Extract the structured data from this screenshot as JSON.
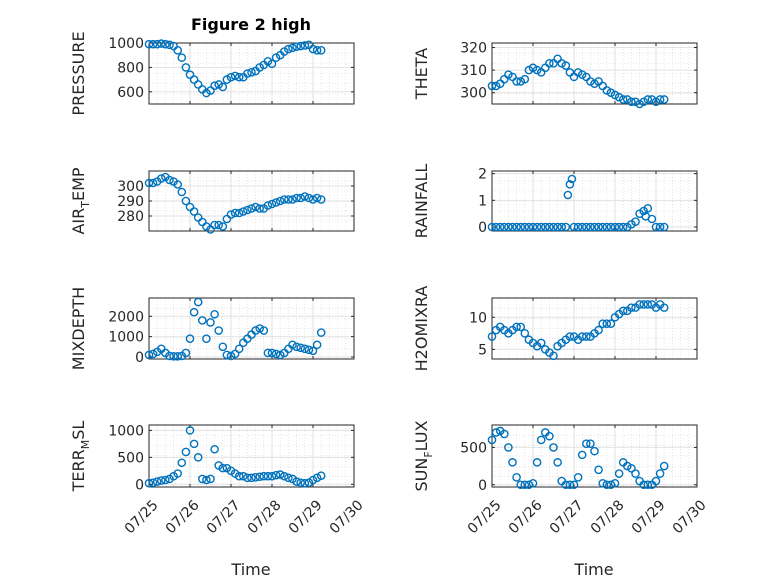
{
  "figure": {
    "title": "Figure 2 high",
    "xlabel": "Time"
  },
  "x_ticks": [
    "07/25",
    "07/26",
    "07/27",
    "07/28",
    "07/29",
    "07/30"
  ],
  "chart_data": [
    {
      "type": "scatter",
      "ylabel": "PRESSURE",
      "ylim": [
        500,
        1000
      ],
      "yticks": [
        "1000",
        "800",
        "600"
      ],
      "ytick_values": [
        1000,
        800,
        600
      ],
      "xlim": [
        "07/25",
        "07/30"
      ],
      "grid": true,
      "minor_grid": true,
      "color": "#0072BD",
      "x": [
        0.0,
        0.1,
        0.2,
        0.3,
        0.4,
        0.5,
        0.6,
        0.7,
        0.8,
        0.9,
        1.0,
        1.1,
        1.2,
        1.3,
        1.4,
        1.5,
        1.6,
        1.7,
        1.8,
        1.9,
        2.0,
        2.1,
        2.2,
        2.3,
        2.4,
        2.5,
        2.6,
        2.7,
        2.8,
        2.9,
        3.0,
        3.1,
        3.2,
        3.3,
        3.4,
        3.5,
        3.6,
        3.7,
        3.8,
        3.9,
        4.0,
        4.1,
        4.2
      ],
      "y": [
        990,
        990,
        990,
        995,
        990,
        985,
        975,
        940,
        880,
        800,
        740,
        700,
        660,
        620,
        590,
        610,
        650,
        660,
        640,
        700,
        720,
        730,
        720,
        720,
        750,
        760,
        770,
        800,
        820,
        850,
        830,
        880,
        900,
        930,
        950,
        960,
        970,
        975,
        980,
        985,
        950,
        940,
        940
      ]
    },
    {
      "type": "scatter",
      "ylabel": "THETA",
      "ylim": [
        295,
        322
      ],
      "yticks": [
        "320",
        "310",
        "300"
      ],
      "ytick_values": [
        320,
        310,
        300
      ],
      "xlim": [
        "07/25",
        "07/30"
      ],
      "grid": true,
      "minor_grid": true,
      "color": "#0072BD",
      "x": [
        0.0,
        0.1,
        0.2,
        0.3,
        0.4,
        0.5,
        0.6,
        0.7,
        0.8,
        0.9,
        1.0,
        1.1,
        1.2,
        1.3,
        1.4,
        1.5,
        1.6,
        1.7,
        1.8,
        1.9,
        2.0,
        2.1,
        2.2,
        2.3,
        2.4,
        2.5,
        2.6,
        2.7,
        2.8,
        2.9,
        3.0,
        3.1,
        3.2,
        3.3,
        3.4,
        3.5,
        3.6,
        3.7,
        3.8,
        3.9,
        4.0,
        4.1,
        4.2
      ],
      "y": [
        303,
        303,
        304,
        306,
        308,
        307,
        305,
        305,
        306,
        310,
        311,
        310,
        309,
        311,
        313,
        313,
        315,
        313,
        312,
        309,
        307,
        309,
        308,
        307,
        305,
        304,
        305,
        303,
        301,
        300,
        299,
        298,
        297,
        297,
        296,
        296,
        295,
        296,
        297,
        297,
        296,
        297,
        297
      ]
    },
    {
      "type": "scatter",
      "ylabel": "AIR_TEMP",
      "ylabel_parts": {
        "main": "AIR",
        "sub": "T",
        "rest": "EMP"
      },
      "ylim": [
        270,
        310
      ],
      "yticks": [
        "300",
        "290",
        "280"
      ],
      "ytick_values": [
        300,
        290,
        280
      ],
      "xlim": [
        "07/25",
        "07/30"
      ],
      "grid": true,
      "minor_grid": true,
      "color": "#0072BD",
      "x": [
        0.0,
        0.1,
        0.2,
        0.3,
        0.4,
        0.5,
        0.6,
        0.7,
        0.8,
        0.9,
        1.0,
        1.1,
        1.2,
        1.3,
        1.4,
        1.5,
        1.6,
        1.7,
        1.8,
        1.9,
        2.0,
        2.1,
        2.2,
        2.3,
        2.4,
        2.5,
        2.6,
        2.7,
        2.8,
        2.9,
        3.0,
        3.1,
        3.2,
        3.3,
        3.4,
        3.5,
        3.6,
        3.7,
        3.8,
        3.9,
        4.0,
        4.1,
        4.2
      ],
      "y": [
        302,
        302,
        303,
        305,
        306,
        304,
        303,
        301,
        296,
        290,
        286,
        283,
        279,
        276,
        273,
        271,
        274,
        274,
        273,
        278,
        281,
        282,
        282,
        283,
        284,
        285,
        286,
        285,
        285,
        287,
        288,
        289,
        290,
        291,
        291,
        291,
        292,
        292,
        293,
        292,
        291,
        292,
        291
      ]
    },
    {
      "type": "scatter",
      "ylabel": "RAINFALL",
      "ylim": [
        -0.15,
        2.1
      ],
      "yticks": [
        "2",
        "1",
        "0"
      ],
      "ytick_values": [
        2,
        1,
        0
      ],
      "xlim": [
        "07/25",
        "07/30"
      ],
      "grid": true,
      "minor_grid": true,
      "color": "#0072BD",
      "x": [
        0.0,
        0.1,
        0.2,
        0.3,
        0.4,
        0.5,
        0.6,
        0.7,
        0.8,
        0.9,
        1.0,
        1.1,
        1.2,
        1.3,
        1.4,
        1.5,
        1.6,
        1.7,
        1.8,
        1.85,
        1.9,
        1.95,
        2.0,
        2.1,
        2.2,
        2.3,
        2.4,
        2.5,
        2.6,
        2.7,
        2.8,
        2.9,
        3.0,
        3.1,
        3.2,
        3.3,
        3.4,
        3.5,
        3.6,
        3.7,
        3.75,
        3.8,
        3.9,
        4.0,
        4.1,
        4.2
      ],
      "y": [
        0,
        0,
        0,
        0,
        0,
        0,
        0,
        0,
        0,
        0,
        0,
        0,
        0,
        0,
        0,
        0,
        0,
        0,
        0,
        1.2,
        1.6,
        1.8,
        0,
        0,
        0,
        0,
        0,
        0,
        0,
        0,
        0,
        0,
        0,
        0,
        0,
        0,
        0.1,
        0.2,
        0.5,
        0.6,
        0.4,
        0.7,
        0.3,
        0,
        0,
        0
      ]
    },
    {
      "type": "scatter",
      "ylabel": "MIXDEPTH",
      "ylim": [
        -100,
        2900
      ],
      "yticks": [
        "2000",
        "1000",
        "0"
      ],
      "ytick_values": [
        2000,
        1000,
        0
      ],
      "xlim": [
        "07/25",
        "07/30"
      ],
      "grid": true,
      "minor_grid": true,
      "color": "#0072BD",
      "x": [
        0.0,
        0.1,
        0.2,
        0.3,
        0.4,
        0.5,
        0.6,
        0.7,
        0.8,
        0.9,
        1.0,
        1.1,
        1.2,
        1.3,
        1.4,
        1.5,
        1.6,
        1.7,
        1.8,
        1.9,
        2.0,
        2.1,
        2.2,
        2.3,
        2.4,
        2.5,
        2.6,
        2.7,
        2.8,
        2.9,
        3.0,
        3.1,
        3.2,
        3.3,
        3.4,
        3.5,
        3.6,
        3.7,
        3.8,
        3.9,
        4.0,
        4.1,
        4.2
      ],
      "y": [
        100,
        150,
        250,
        400,
        200,
        50,
        30,
        30,
        50,
        200,
        900,
        2200,
        2700,
        1800,
        900,
        1700,
        2100,
        1300,
        500,
        100,
        50,
        150,
        400,
        700,
        900,
        1100,
        1300,
        1400,
        1300,
        200,
        200,
        150,
        100,
        200,
        400,
        600,
        500,
        450,
        400,
        350,
        300,
        600,
        1200
      ]
    },
    {
      "type": "scatter",
      "ylabel": "H2OMIXRA",
      "ylim": [
        3.5,
        13
      ],
      "yticks": [
        "10",
        "5"
      ],
      "ytick_values": [
        10,
        5
      ],
      "xlim": [
        "07/25",
        "07/30"
      ],
      "grid": true,
      "minor_grid": true,
      "color": "#0072BD",
      "x": [
        0.0,
        0.1,
        0.2,
        0.3,
        0.4,
        0.5,
        0.6,
        0.7,
        0.8,
        0.9,
        1.0,
        1.1,
        1.2,
        1.3,
        1.4,
        1.5,
        1.6,
        1.7,
        1.8,
        1.9,
        2.0,
        2.1,
        2.2,
        2.3,
        2.4,
        2.5,
        2.6,
        2.7,
        2.8,
        2.9,
        3.0,
        3.1,
        3.2,
        3.3,
        3.4,
        3.5,
        3.6,
        3.7,
        3.8,
        3.9,
        4.0,
        4.1,
        4.2
      ],
      "y": [
        7,
        8,
        8.5,
        8,
        7.5,
        8,
        8.5,
        8.5,
        7.5,
        6.5,
        6,
        5.5,
        6,
        5,
        4.5,
        4,
        5.5,
        6,
        6.5,
        7,
        7,
        6.5,
        7,
        7,
        7,
        7.5,
        8,
        9,
        9,
        9,
        10,
        10.5,
        11,
        11,
        11.5,
        11.5,
        12,
        12,
        12,
        12,
        11.5,
        12,
        11.5
      ]
    },
    {
      "type": "scatter",
      "ylabel": "TERR_MSL",
      "ylabel_parts": {
        "main": "TERR",
        "sub": "M",
        "rest": "SL"
      },
      "ylim": [
        -50,
        1100
      ],
      "yticks": [
        "1000",
        "500",
        "0"
      ],
      "ytick_values": [
        1000,
        500,
        0
      ],
      "xlim": [
        "07/25",
        "07/30"
      ],
      "grid": true,
      "minor_grid": true,
      "color": "#0072BD",
      "x": [
        0.0,
        0.1,
        0.2,
        0.3,
        0.4,
        0.5,
        0.6,
        0.7,
        0.8,
        0.9,
        1.0,
        1.1,
        1.2,
        1.3,
        1.4,
        1.5,
        1.6,
        1.7,
        1.8,
        1.9,
        2.0,
        2.1,
        2.2,
        2.3,
        2.4,
        2.5,
        2.6,
        2.7,
        2.8,
        2.9,
        3.0,
        3.1,
        3.2,
        3.3,
        3.4,
        3.5,
        3.6,
        3.7,
        3.8,
        3.9,
        4.0,
        4.1,
        4.2
      ],
      "y": [
        20,
        30,
        50,
        70,
        80,
        100,
        150,
        200,
        400,
        600,
        1000,
        750,
        500,
        100,
        80,
        100,
        650,
        350,
        300,
        300,
        250,
        200,
        150,
        150,
        120,
        120,
        130,
        140,
        150,
        150,
        150,
        170,
        180,
        150,
        120,
        100,
        50,
        30,
        20,
        30,
        80,
        120,
        160
      ]
    },
    {
      "type": "scatter",
      "ylabel": "SUN_FLUX",
      "ylabel_parts": {
        "main": "SUN",
        "sub": "F",
        "rest": "LUX"
      },
      "ylim": [
        -30,
        800
      ],
      "yticks": [
        "500",
        "0"
      ],
      "ytick_values": [
        500,
        0
      ],
      "xlim": [
        "07/25",
        "07/30"
      ],
      "grid": true,
      "minor_grid": true,
      "color": "#0072BD",
      "x": [
        0.0,
        0.1,
        0.2,
        0.3,
        0.4,
        0.5,
        0.6,
        0.7,
        0.8,
        0.9,
        1.0,
        1.1,
        1.2,
        1.3,
        1.4,
        1.5,
        1.6,
        1.7,
        1.8,
        1.9,
        2.0,
        2.1,
        2.2,
        2.3,
        2.4,
        2.5,
        2.6,
        2.7,
        2.8,
        2.9,
        3.0,
        3.1,
        3.2,
        3.3,
        3.4,
        3.5,
        3.6,
        3.7,
        3.8,
        3.9,
        4.0,
        4.1,
        4.2
      ],
      "y": [
        600,
        700,
        720,
        680,
        500,
        300,
        100,
        0,
        0,
        0,
        20,
        300,
        600,
        700,
        650,
        500,
        300,
        50,
        0,
        0,
        0,
        100,
        400,
        550,
        550,
        450,
        200,
        20,
        0,
        0,
        20,
        150,
        300,
        250,
        220,
        150,
        50,
        0,
        0,
        0,
        50,
        150,
        250
      ]
    }
  ]
}
